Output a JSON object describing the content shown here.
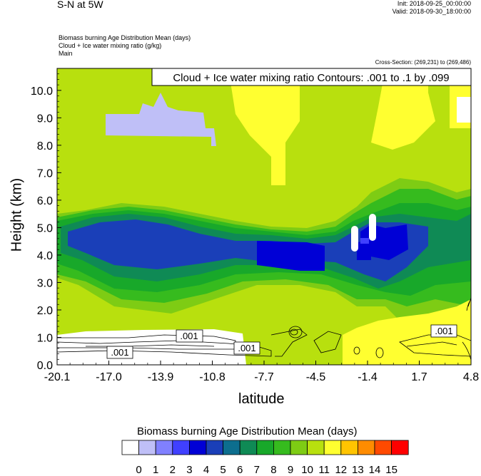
{
  "header": {
    "title": "S-N at 5W",
    "init": "Init: 2018-09-25_00:00:00",
    "valid": "Valid: 2018-09-30_18:00:00",
    "field1": "Biomass burning Age Distribution Mean   (days)",
    "field2": "Cloud + Ice water mixing ratio   (g/kg)",
    "field3": "Main",
    "cross_section": "Cross-Section: (269,231) to (269,486)"
  },
  "chart_data": {
    "type": "heatmap",
    "title": "Cloud + Ice water mixing ratio Contours: .001 to .1 by .099",
    "xlabel": "latitude",
    "ylabel": "Height (km)",
    "x_ticks": [
      "-20.1",
      "-17.0",
      "-13.9",
      "-10.8",
      "-7.7",
      "-4.5",
      "-1.4",
      "1.7",
      "4.8"
    ],
    "y_ticks": [
      "0.0",
      "1.0",
      "2.0",
      "3.0",
      "4.0",
      "5.0",
      "6.0",
      "7.0",
      "8.0",
      "9.0",
      "10.0"
    ],
    "xlim": [
      -20.1,
      4.8
    ],
    "ylim": [
      0,
      10.8
    ],
    "contour_labels": [
      ".001",
      ".001",
      ".001",
      ".001"
    ],
    "colorbar": {
      "title": "Biomass burning Age Distribution Mean  (days)",
      "labels": [
        "0",
        "1",
        "2",
        "3",
        "4",
        "5",
        "6",
        "7",
        "8",
        "9",
        "10",
        "11",
        "12",
        "13",
        "14",
        "15"
      ],
      "colors": [
        "#ffffff",
        "#bfbff7",
        "#8080ff",
        "#4040ff",
        "#0000d6",
        "#1a3fb8",
        "#0d6e8e",
        "#0f8a55",
        "#18a82a",
        "#36bb1e",
        "#7ecc14",
        "#b8e00e",
        "#ffff30",
        "#ffc400",
        "#ff8c00",
        "#ff4a00",
        "#ff0000"
      ]
    }
  }
}
